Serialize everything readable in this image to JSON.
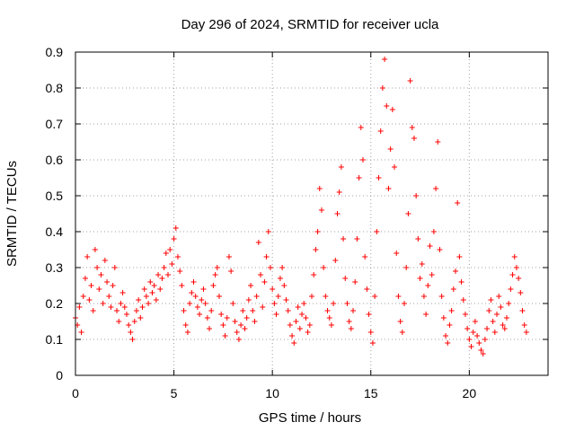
{
  "chart_data": {
    "type": "scatter",
    "title": "Day 296 of 2024, SRMTID for receiver ucla",
    "xlabel": "GPS time / hours",
    "ylabel": "SRMTID / TECUs",
    "xlim": [
      0,
      24
    ],
    "ylim": [
      0,
      0.9
    ],
    "xticks": [
      0,
      5,
      10,
      15,
      20
    ],
    "xtick_labels": [
      "0",
      "5",
      "10",
      "15",
      "20"
    ],
    "yticks": [
      0,
      0.1,
      0.2,
      0.3,
      0.4,
      0.5,
      0.6,
      0.7,
      0.8,
      0.9
    ],
    "ytick_labels": [
      "0",
      "0.1",
      "0.2",
      "0.3",
      "0.4",
      "0.5",
      "0.6",
      "0.7",
      "0.8",
      "0.9"
    ],
    "grid": true,
    "marker": "+",
    "color": "#ff0000",
    "series": [
      {
        "name": "SRMTID",
        "points": [
          [
            0.0,
            0.16
          ],
          [
            0.1,
            0.14
          ],
          [
            0.2,
            0.19
          ],
          [
            0.3,
            0.12
          ],
          [
            0.4,
            0.22
          ],
          [
            0.5,
            0.27
          ],
          [
            0.6,
            0.33
          ],
          [
            0.7,
            0.21
          ],
          [
            0.8,
            0.25
          ],
          [
            0.9,
            0.18
          ],
          [
            1.0,
            0.35
          ],
          [
            1.1,
            0.3
          ],
          [
            1.2,
            0.24
          ],
          [
            1.3,
            0.28
          ],
          [
            1.4,
            0.2
          ],
          [
            1.5,
            0.32
          ],
          [
            1.6,
            0.26
          ],
          [
            1.7,
            0.22
          ],
          [
            1.8,
            0.19
          ],
          [
            1.9,
            0.25
          ],
          [
            2.0,
            0.3
          ],
          [
            2.1,
            0.18
          ],
          [
            2.2,
            0.15
          ],
          [
            2.3,
            0.2
          ],
          [
            2.4,
            0.23
          ],
          [
            2.5,
            0.19
          ],
          [
            2.6,
            0.17
          ],
          [
            2.7,
            0.14
          ],
          [
            2.8,
            0.12
          ],
          [
            2.9,
            0.1
          ],
          [
            3.0,
            0.15
          ],
          [
            3.1,
            0.18
          ],
          [
            3.2,
            0.21
          ],
          [
            3.3,
            0.16
          ],
          [
            3.4,
            0.19
          ],
          [
            3.5,
            0.24
          ],
          [
            3.6,
            0.22
          ],
          [
            3.7,
            0.2
          ],
          [
            3.8,
            0.26
          ],
          [
            3.9,
            0.23
          ],
          [
            4.0,
            0.25
          ],
          [
            4.1,
            0.21
          ],
          [
            4.2,
            0.28
          ],
          [
            4.3,
            0.24
          ],
          [
            4.4,
            0.27
          ],
          [
            4.5,
            0.3
          ],
          [
            4.6,
            0.34
          ],
          [
            4.7,
            0.28
          ],
          [
            4.8,
            0.35
          ],
          [
            4.9,
            0.31
          ],
          [
            5.0,
            0.38
          ],
          [
            5.1,
            0.41
          ],
          [
            5.2,
            0.33
          ],
          [
            5.3,
            0.29
          ],
          [
            5.4,
            0.25
          ],
          [
            5.5,
            0.18
          ],
          [
            5.6,
            0.14
          ],
          [
            5.7,
            0.12
          ],
          [
            5.8,
            0.2
          ],
          [
            5.9,
            0.23
          ],
          [
            6.0,
            0.26
          ],
          [
            6.1,
            0.22
          ],
          [
            6.2,
            0.19
          ],
          [
            6.3,
            0.17
          ],
          [
            6.4,
            0.21
          ],
          [
            6.5,
            0.24
          ],
          [
            6.6,
            0.2
          ],
          [
            6.7,
            0.16
          ],
          [
            6.8,
            0.13
          ],
          [
            6.9,
            0.18
          ],
          [
            7.0,
            0.25
          ],
          [
            7.1,
            0.28
          ],
          [
            7.2,
            0.3
          ],
          [
            7.3,
            0.22
          ],
          [
            7.4,
            0.17
          ],
          [
            7.5,
            0.14
          ],
          [
            7.6,
            0.11
          ],
          [
            7.7,
            0.16
          ],
          [
            7.8,
            0.33
          ],
          [
            7.9,
            0.29
          ],
          [
            8.0,
            0.2
          ],
          [
            8.1,
            0.15
          ],
          [
            8.2,
            0.12
          ],
          [
            8.3,
            0.1
          ],
          [
            8.4,
            0.14
          ],
          [
            8.5,
            0.18
          ],
          [
            8.6,
            0.13
          ],
          [
            8.7,
            0.16
          ],
          [
            8.8,
            0.21
          ],
          [
            8.9,
            0.25
          ],
          [
            9.0,
            0.18
          ],
          [
            9.1,
            0.15
          ],
          [
            9.2,
            0.22
          ],
          [
            9.3,
            0.37
          ],
          [
            9.4,
            0.28
          ],
          [
            9.5,
            0.19
          ],
          [
            9.6,
            0.26
          ],
          [
            9.7,
            0.33
          ],
          [
            9.8,
            0.4
          ],
          [
            9.9,
            0.3
          ],
          [
            10.0,
            0.24
          ],
          [
            10.1,
            0.2
          ],
          [
            10.2,
            0.17
          ],
          [
            10.3,
            0.22
          ],
          [
            10.4,
            0.27
          ],
          [
            10.5,
            0.3
          ],
          [
            10.6,
            0.25
          ],
          [
            10.7,
            0.21
          ],
          [
            10.8,
            0.18
          ],
          [
            10.9,
            0.14
          ],
          [
            11.0,
            0.11
          ],
          [
            11.1,
            0.09
          ],
          [
            11.2,
            0.15
          ],
          [
            11.3,
            0.19
          ],
          [
            11.4,
            0.13
          ],
          [
            11.5,
            0.17
          ],
          [
            11.6,
            0.2
          ],
          [
            11.7,
            0.16
          ],
          [
            11.8,
            0.12
          ],
          [
            11.9,
            0.14
          ],
          [
            12.0,
            0.22
          ],
          [
            12.1,
            0.28
          ],
          [
            12.2,
            0.35
          ],
          [
            12.3,
            0.4
          ],
          [
            12.4,
            0.52
          ],
          [
            12.5,
            0.46
          ],
          [
            12.6,
            0.3
          ],
          [
            12.7,
            0.22
          ],
          [
            12.8,
            0.18
          ],
          [
            12.9,
            0.16
          ],
          [
            13.0,
            0.14
          ],
          [
            13.1,
            0.2
          ],
          [
            13.2,
            0.32
          ],
          [
            13.3,
            0.45
          ],
          [
            13.4,
            0.51
          ],
          [
            13.5,
            0.58
          ],
          [
            13.6,
            0.38
          ],
          [
            13.7,
            0.27
          ],
          [
            13.8,
            0.2
          ],
          [
            13.9,
            0.15
          ],
          [
            14.0,
            0.13
          ],
          [
            14.1,
            0.18
          ],
          [
            14.2,
            0.26
          ],
          [
            14.3,
            0.38
          ],
          [
            14.4,
            0.55
          ],
          [
            14.5,
            0.69
          ],
          [
            14.6,
            0.6
          ],
          [
            14.7,
            0.33
          ],
          [
            14.8,
            0.24
          ],
          [
            14.9,
            0.17
          ],
          [
            15.0,
            0.12
          ],
          [
            15.1,
            0.09
          ],
          [
            15.2,
            0.22
          ],
          [
            15.3,
            0.4
          ],
          [
            15.4,
            0.55
          ],
          [
            15.5,
            0.68
          ],
          [
            15.6,
            0.8
          ],
          [
            15.7,
            0.88
          ],
          [
            15.8,
            0.75
          ],
          [
            15.9,
            0.52
          ],
          [
            16.0,
            0.63
          ],
          [
            16.1,
            0.74
          ],
          [
            16.2,
            0.58
          ],
          [
            16.3,
            0.34
          ],
          [
            16.4,
            0.22
          ],
          [
            16.5,
            0.15
          ],
          [
            16.6,
            0.12
          ],
          [
            16.7,
            0.2
          ],
          [
            16.8,
            0.3
          ],
          [
            16.9,
            0.45
          ],
          [
            17.0,
            0.82
          ],
          [
            17.1,
            0.69
          ],
          [
            17.2,
            0.66
          ],
          [
            17.3,
            0.5
          ],
          [
            17.4,
            0.38
          ],
          [
            17.5,
            0.27
          ],
          [
            17.6,
            0.31
          ],
          [
            17.7,
            0.22
          ],
          [
            17.8,
            0.17
          ],
          [
            17.9,
            0.25
          ],
          [
            18.0,
            0.36
          ],
          [
            18.1,
            0.28
          ],
          [
            18.2,
            0.4
          ],
          [
            18.3,
            0.52
          ],
          [
            18.4,
            0.65
          ],
          [
            18.5,
            0.35
          ],
          [
            18.6,
            0.22
          ],
          [
            18.7,
            0.16
          ],
          [
            18.8,
            0.11
          ],
          [
            18.9,
            0.09
          ],
          [
            19.0,
            0.14
          ],
          [
            19.1,
            0.18
          ],
          [
            19.2,
            0.24
          ],
          [
            19.3,
            0.29
          ],
          [
            19.4,
            0.48
          ],
          [
            19.5,
            0.33
          ],
          [
            19.6,
            0.26
          ],
          [
            19.7,
            0.21
          ],
          [
            19.8,
            0.17
          ],
          [
            19.9,
            0.13
          ],
          [
            20.0,
            0.1
          ],
          [
            20.1,
            0.08
          ],
          [
            20.2,
            0.12
          ],
          [
            20.3,
            0.15
          ],
          [
            20.4,
            0.11
          ],
          [
            20.5,
            0.09
          ],
          [
            20.6,
            0.07
          ],
          [
            20.7,
            0.06
          ],
          [
            20.8,
            0.1
          ],
          [
            20.9,
            0.13
          ],
          [
            21.0,
            0.18
          ],
          [
            21.1,
            0.21
          ],
          [
            21.2,
            0.15
          ],
          [
            21.3,
            0.12
          ],
          [
            21.4,
            0.17
          ],
          [
            21.5,
            0.22
          ],
          [
            21.6,
            0.19
          ],
          [
            21.7,
            0.14
          ],
          [
            21.8,
            0.13
          ],
          [
            21.9,
            0.16
          ],
          [
            22.0,
            0.2
          ],
          [
            22.1,
            0.24
          ],
          [
            22.2,
            0.28
          ],
          [
            22.3,
            0.33
          ],
          [
            22.4,
            0.3
          ],
          [
            22.5,
            0.27
          ],
          [
            22.6,
            0.23
          ],
          [
            22.7,
            0.18
          ],
          [
            22.8,
            0.14
          ],
          [
            22.9,
            0.12
          ]
        ]
      }
    ]
  }
}
